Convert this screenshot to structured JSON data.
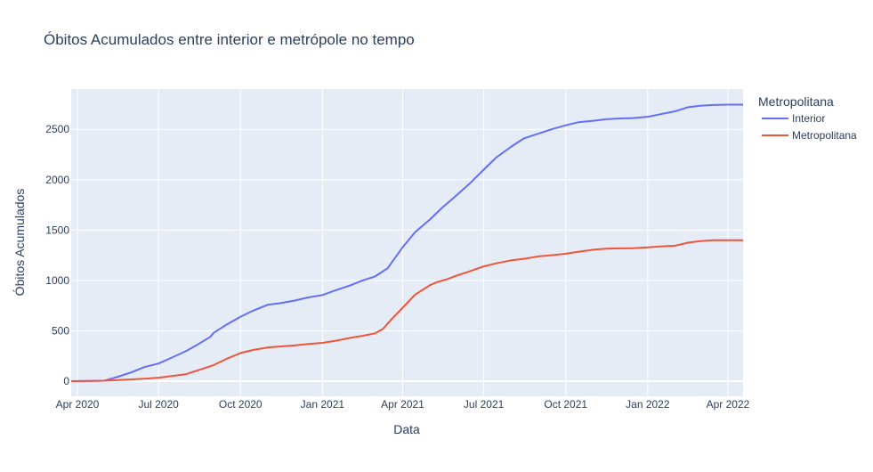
{
  "chart_data": {
    "type": "line",
    "title": "Óbitos Acumulados entre interior e metrópole no tempo",
    "xlabel": "Data",
    "ylabel": "Óbitos Acumulados",
    "xlim": [
      "2020-03-25",
      "2022-04-18"
    ],
    "ylim": [
      -150,
      2900
    ],
    "x_ticks": [
      {
        "date": "2020-04-01",
        "label": "Apr 2020"
      },
      {
        "date": "2020-07-01",
        "label": "Jul 2020"
      },
      {
        "date": "2020-10-01",
        "label": "Oct 2020"
      },
      {
        "date": "2021-01-01",
        "label": "Jan 2021"
      },
      {
        "date": "2021-04-01",
        "label": "Apr 2021"
      },
      {
        "date": "2021-07-01",
        "label": "Jul 2021"
      },
      {
        "date": "2021-10-01",
        "label": "Oct 2021"
      },
      {
        "date": "2022-01-01",
        "label": "Jan 2022"
      },
      {
        "date": "2022-04-01",
        "label": "Apr 2022"
      }
    ],
    "y_ticks": [
      0,
      500,
      1000,
      1500,
      2000,
      2500
    ],
    "grid": true,
    "legend": {
      "title": "Metropolitana",
      "position": "top-right"
    },
    "series": [
      {
        "name": "Interior",
        "color": "#636efa",
        "points": [
          [
            "2020-03-25",
            0
          ],
          [
            "2020-04-15",
            2
          ],
          [
            "2020-05-01",
            5
          ],
          [
            "2020-05-15",
            40
          ],
          [
            "2020-06-01",
            90
          ],
          [
            "2020-06-15",
            140
          ],
          [
            "2020-07-01",
            175
          ],
          [
            "2020-07-15",
            230
          ],
          [
            "2020-08-01",
            300
          ],
          [
            "2020-08-15",
            370
          ],
          [
            "2020-08-28",
            440
          ],
          [
            "2020-09-01",
            480
          ],
          [
            "2020-09-15",
            560
          ],
          [
            "2020-10-01",
            640
          ],
          [
            "2020-10-15",
            700
          ],
          [
            "2020-11-01",
            760
          ],
          [
            "2020-11-15",
            775
          ],
          [
            "2020-12-01",
            800
          ],
          [
            "2020-12-15",
            830
          ],
          [
            "2021-01-01",
            855
          ],
          [
            "2021-01-15",
            900
          ],
          [
            "2021-02-01",
            950
          ],
          [
            "2021-02-15",
            1000
          ],
          [
            "2021-03-01",
            1040
          ],
          [
            "2021-03-15",
            1120
          ],
          [
            "2021-04-01",
            1330
          ],
          [
            "2021-04-15",
            1480
          ],
          [
            "2021-05-01",
            1600
          ],
          [
            "2021-05-15",
            1720
          ],
          [
            "2021-06-01",
            1850
          ],
          [
            "2021-06-15",
            1960
          ],
          [
            "2021-07-01",
            2100
          ],
          [
            "2021-07-15",
            2220
          ],
          [
            "2021-08-01",
            2330
          ],
          [
            "2021-08-15",
            2410
          ],
          [
            "2021-09-01",
            2460
          ],
          [
            "2021-09-15",
            2500
          ],
          [
            "2021-10-01",
            2540
          ],
          [
            "2021-10-15",
            2570
          ],
          [
            "2021-11-01",
            2585
          ],
          [
            "2021-11-15",
            2600
          ],
          [
            "2021-12-01",
            2608
          ],
          [
            "2021-12-15",
            2612
          ],
          [
            "2022-01-01",
            2625
          ],
          [
            "2022-01-15",
            2650
          ],
          [
            "2022-02-01",
            2680
          ],
          [
            "2022-02-15",
            2720
          ],
          [
            "2022-03-01",
            2735
          ],
          [
            "2022-03-15",
            2742
          ],
          [
            "2022-04-01",
            2745
          ],
          [
            "2022-04-18",
            2745
          ]
        ]
      },
      {
        "name": "Metropolitana",
        "color": "#ef553b",
        "points": [
          [
            "2020-03-25",
            0
          ],
          [
            "2020-04-15",
            2
          ],
          [
            "2020-05-01",
            5
          ],
          [
            "2020-05-15",
            10
          ],
          [
            "2020-06-01",
            18
          ],
          [
            "2020-06-15",
            25
          ],
          [
            "2020-07-01",
            35
          ],
          [
            "2020-07-15",
            50
          ],
          [
            "2020-08-01",
            70
          ],
          [
            "2020-08-15",
            110
          ],
          [
            "2020-09-01",
            160
          ],
          [
            "2020-09-15",
            220
          ],
          [
            "2020-10-01",
            280
          ],
          [
            "2020-10-15",
            310
          ],
          [
            "2020-11-01",
            335
          ],
          [
            "2020-11-15",
            345
          ],
          [
            "2020-12-01",
            355
          ],
          [
            "2020-12-15",
            368
          ],
          [
            "2021-01-01",
            380
          ],
          [
            "2021-01-15",
            400
          ],
          [
            "2021-02-01",
            430
          ],
          [
            "2021-02-15",
            450
          ],
          [
            "2021-03-01",
            475
          ],
          [
            "2021-03-10",
            520
          ],
          [
            "2021-03-20",
            620
          ],
          [
            "2021-04-01",
            730
          ],
          [
            "2021-04-15",
            860
          ],
          [
            "2021-05-01",
            950
          ],
          [
            "2021-05-10",
            985
          ],
          [
            "2021-05-20",
            1010
          ],
          [
            "2021-06-01",
            1050
          ],
          [
            "2021-06-15",
            1090
          ],
          [
            "2021-07-01",
            1140
          ],
          [
            "2021-07-15",
            1170
          ],
          [
            "2021-08-01",
            1200
          ],
          [
            "2021-08-15",
            1215
          ],
          [
            "2021-09-01",
            1240
          ],
          [
            "2021-09-15",
            1250
          ],
          [
            "2021-10-01",
            1265
          ],
          [
            "2021-10-15",
            1285
          ],
          [
            "2021-11-01",
            1305
          ],
          [
            "2021-11-15",
            1315
          ],
          [
            "2021-12-01",
            1318
          ],
          [
            "2021-12-15",
            1320
          ],
          [
            "2022-01-01",
            1328
          ],
          [
            "2022-01-15",
            1338
          ],
          [
            "2022-02-01",
            1345
          ],
          [
            "2022-02-15",
            1375
          ],
          [
            "2022-03-01",
            1390
          ],
          [
            "2022-03-15",
            1400
          ],
          [
            "2022-04-01",
            1400
          ],
          [
            "2022-04-18",
            1400
          ]
        ]
      }
    ]
  }
}
